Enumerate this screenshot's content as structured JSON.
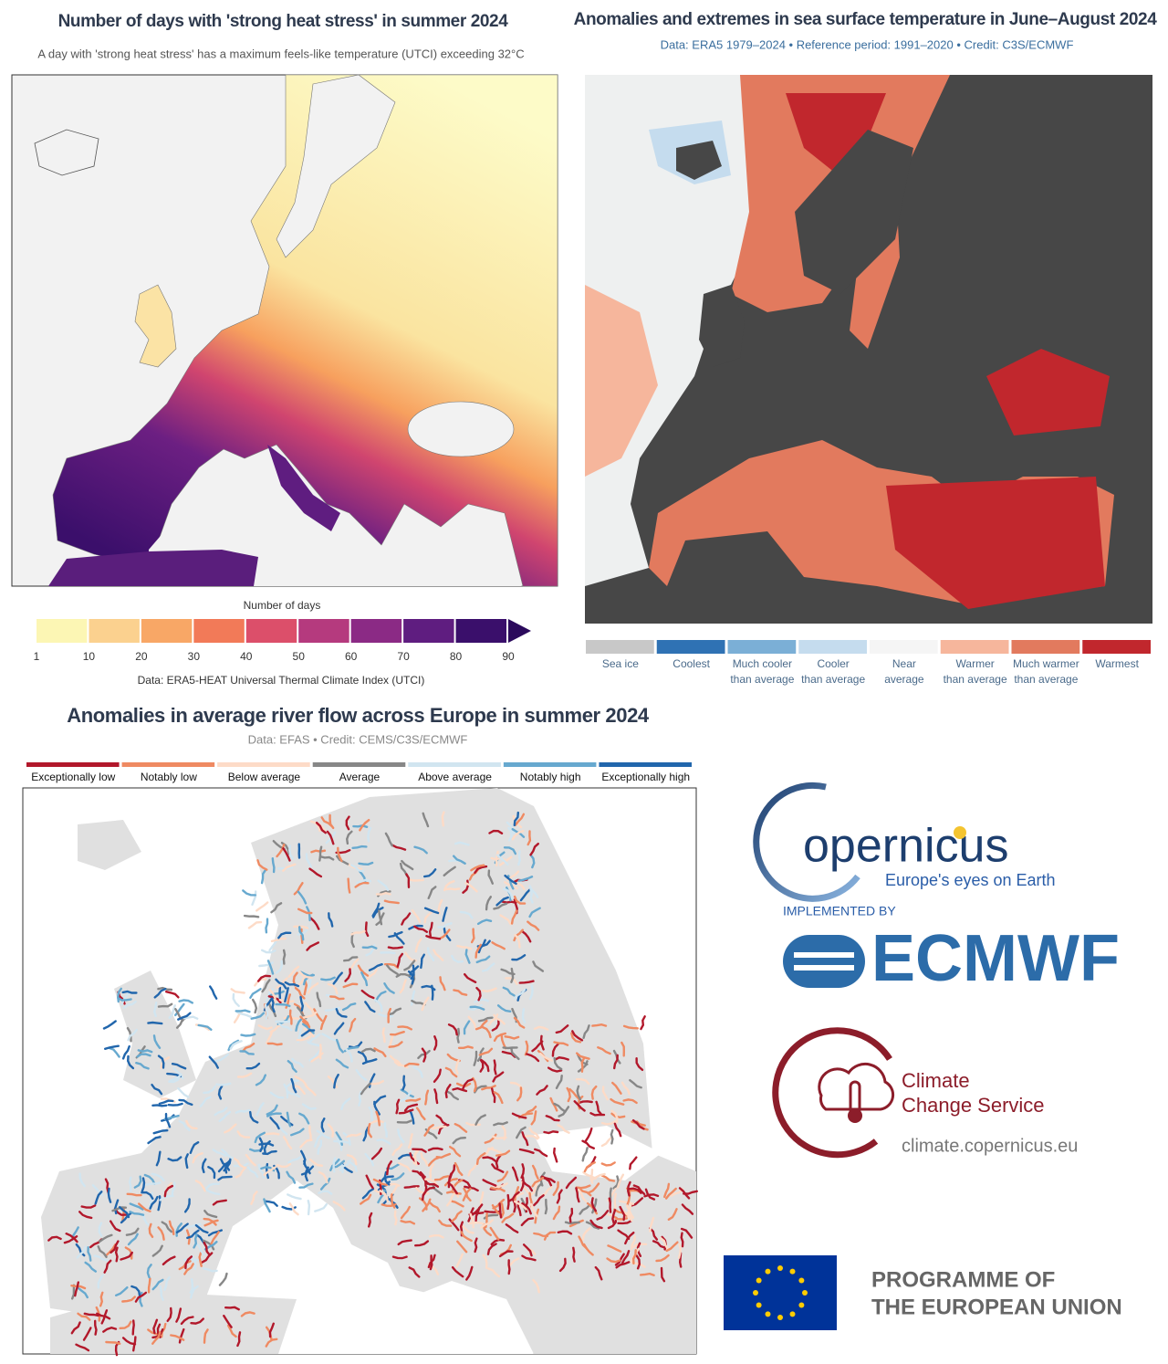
{
  "heat_map": {
    "title": "Number of days with 'strong heat stress' in summer 2024",
    "subtitle": "A day with 'strong heat stress' has a maximum feels-like temperature (UTCI) exceeding 32°C",
    "legend_title": "Number of days",
    "legend_ticks": [
      1,
      10,
      20,
      30,
      40,
      50,
      60,
      70,
      80,
      90
    ],
    "legend_colors": [
      "#fcf6b4",
      "#fbd18f",
      "#f8a766",
      "#f27a58",
      "#dc4f6a",
      "#b53a7e",
      "#8b2a85",
      "#5f1d80",
      "#3a0f6b",
      "#2b0a5c"
    ],
    "source": "Data: ERA5-HEAT Universal Thermal Climate Index (UTCI)"
  },
  "sst_map": {
    "title": "Anomalies and extremes in sea surface temperature in June–August 2024",
    "subtitle": "Data: ERA5 1979–2024 • Reference period: 1991–2020 • Credit: C3S/ECMWF",
    "legend": [
      {
        "label": [
          "Sea ice"
        ],
        "color": "#c8c8c8"
      },
      {
        "label": [
          "Coolest"
        ],
        "color": "#2f72b4"
      },
      {
        "label": [
          "Much cooler",
          "than average"
        ],
        "color": "#7bafd6"
      },
      {
        "label": [
          "Cooler",
          "than average"
        ],
        "color": "#c5dcee"
      },
      {
        "label": [
          "Near",
          "average"
        ],
        "color": "#f5f5f5"
      },
      {
        "label": [
          "Warmer",
          "than average"
        ],
        "color": "#f6b69c"
      },
      {
        "label": [
          "Much warmer",
          "than average"
        ],
        "color": "#e27a5e"
      },
      {
        "label": [
          "Warmest"
        ],
        "color": "#c1272d"
      }
    ]
  },
  "river_map": {
    "title": "Anomalies in average river flow across Europe in summer 2024",
    "subtitle": "Data: EFAS • Credit: CEMS/C3S/ECMWF",
    "legend": [
      {
        "label": "Exceptionally low",
        "color": "#b2182b"
      },
      {
        "label": "Notably low",
        "color": "#ef8a62"
      },
      {
        "label": "Below average",
        "color": "#fddbc7"
      },
      {
        "label": "Average",
        "color": "#878787"
      },
      {
        "label": "Above average",
        "color": "#d1e5f0"
      },
      {
        "label": "Notably high",
        "color": "#67a9cf"
      },
      {
        "label": "Exceptionally high",
        "color": "#2166ac"
      }
    ]
  },
  "logos": {
    "copernicus": "opernicus",
    "copernicus_tagline": "Europe's eyes on Earth",
    "implemented_by": "IMPLEMENTED BY",
    "ecmwf": "ECMWF",
    "climate_service": [
      "Climate",
      "Change Service"
    ],
    "climate_url": "climate.copernicus.eu",
    "eu_programme": [
      "PROGRAMME OF",
      "THE EUROPEAN UNION"
    ]
  }
}
